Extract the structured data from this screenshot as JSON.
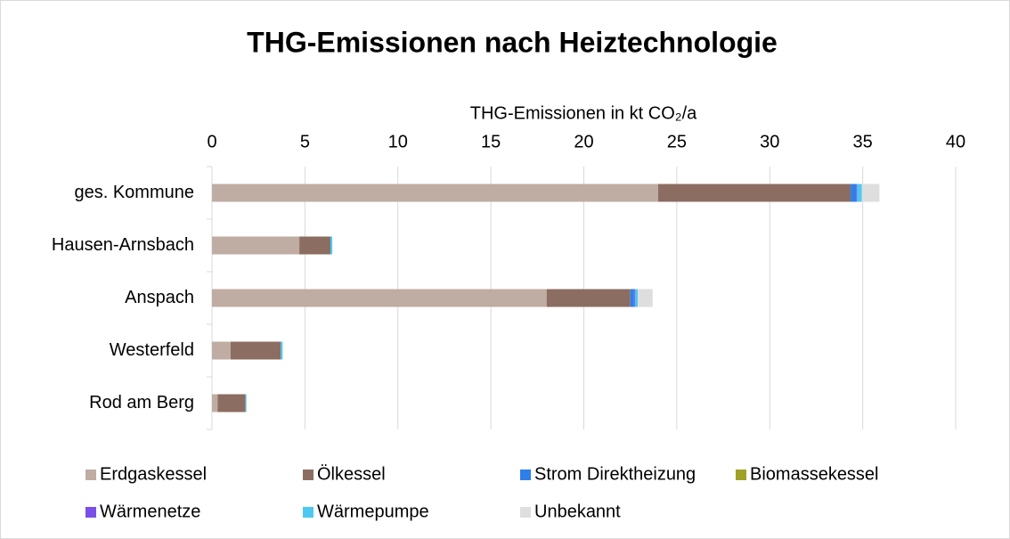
{
  "chart_data": {
    "type": "stacked_barh",
    "title": "THG-Emissionen nach Heiztechnologie",
    "x_label": "THG-Emissionen in kt CO₂/a",
    "categories": [
      "ges. Kommune",
      "Hausen-Arnsbach",
      "Anspach",
      "Westerfeld",
      "Rod am Berg"
    ],
    "series": [
      {
        "name": "Erdgaskessel",
        "color": "#bfaca3",
        "values": [
          24.0,
          4.7,
          18.0,
          1.0,
          0.3
        ]
      },
      {
        "name": "Ölkessel",
        "color": "#8c6d62",
        "values": [
          10.35,
          1.67,
          4.5,
          2.7,
          1.5
        ]
      },
      {
        "name": "Strom Direktheizung",
        "color": "#2f7fe8",
        "values": [
          0.3,
          0,
          0.2,
          0,
          0
        ]
      },
      {
        "name": "Biomassekessel",
        "color": "#a0a027",
        "values": [
          0,
          0,
          0,
          0,
          0
        ]
      },
      {
        "name": "Wärmenetze",
        "color": "#7a4fe8",
        "values": [
          0.05,
          0,
          0.05,
          0,
          0
        ]
      },
      {
        "name": "Wärmepumpe",
        "color": "#4dc8f0",
        "values": [
          0.25,
          0.1,
          0.15,
          0.1,
          0.05
        ]
      },
      {
        "name": "Unbekannt",
        "color": "#dedede",
        "values": [
          0.95,
          0,
          0.8,
          0,
          0
        ]
      }
    ],
    "xlim": [
      0,
      40
    ],
    "xticks": [
      0,
      5,
      10,
      15,
      20,
      25,
      30,
      35,
      40
    ],
    "grid": true,
    "legend": "bottom"
  }
}
